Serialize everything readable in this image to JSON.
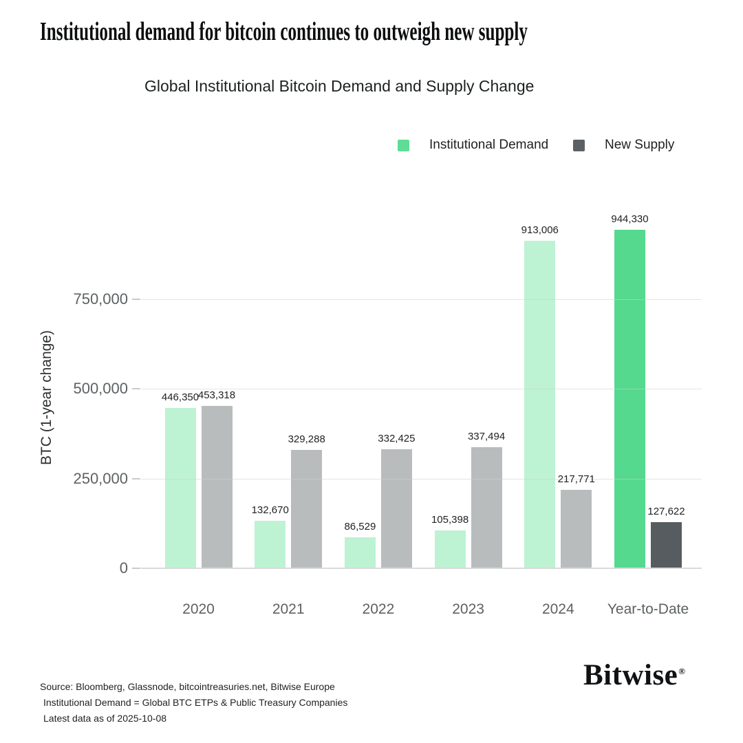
{
  "title": "Institutional demand for bitcoin continues to outweigh new supply",
  "subtitle": "Global Institutional Bitcoin Demand and Supply Change",
  "legend": [
    {
      "label": "Institutional Demand",
      "color": "#5fdc96"
    },
    {
      "label": "New Supply",
      "color": "#5a6063"
    }
  ],
  "chart_data": {
    "type": "bar",
    "title": "Global Institutional Bitcoin Demand and Supply Change",
    "categories": [
      "2020",
      "2021",
      "2022",
      "2023",
      "2024",
      "Year-to-Date"
    ],
    "series": [
      {
        "name": "Institutional Demand",
        "values": [
          446350,
          132670,
          86529,
          105398,
          913006,
          944330
        ],
        "value_labels": [
          "446,350",
          "132,670",
          "86,529",
          "105,398",
          "913,006",
          "944,330"
        ],
        "bar_colors": [
          "#bdf2d3",
          "#bdf2d3",
          "#bdf2d3",
          "#bdf2d3",
          "#bdf2d3",
          "#55d98e"
        ]
      },
      {
        "name": "New Supply",
        "values": [
          453318,
          329288,
          332425,
          337494,
          217771,
          127622
        ],
        "value_labels": [
          "453,318",
          "329,288",
          "332,425",
          "337,494",
          "217,771",
          "127,622"
        ],
        "bar_colors": [
          "#b9bcbc",
          "#b9bcbc",
          "#b9bcbc",
          "#b9bcbc",
          "#b9bcbc",
          "#565c5f"
        ]
      }
    ],
    "ylabel": "BTC (1-year change)",
    "yticks": [
      {
        "value": 0,
        "label": "0"
      },
      {
        "value": 250000,
        "label": "250,000"
      },
      {
        "value": 500000,
        "label": "500,000"
      },
      {
        "value": 750000,
        "label": "750,000"
      }
    ],
    "ylim": [
      0,
      990000
    ],
    "grid": true,
    "legend_position": "top-right"
  },
  "footer": {
    "lines": [
      "Source: Bloomberg, Glassnode, bitcointreasuries.net, Bitwise Europe",
      "Institutional Demand = Global BTC ETPs & Public Treasury Companies",
      "Latest data as of 2025-10-08"
    ]
  },
  "logo": {
    "text": "Bitwise",
    "reg": "®"
  }
}
